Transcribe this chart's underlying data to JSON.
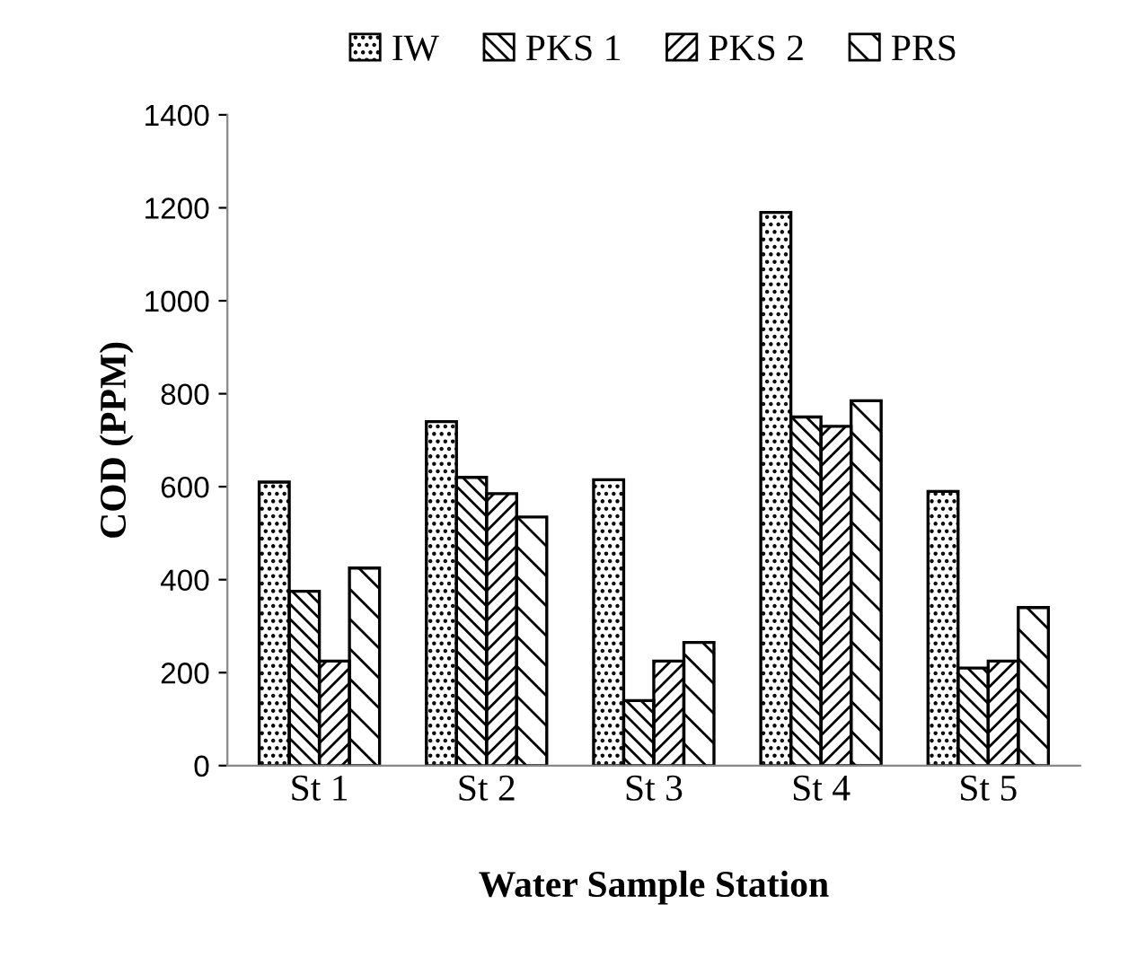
{
  "chart_data": {
    "type": "bar",
    "xlabel": "Water Sample Station",
    "ylabel": "COD (PPM)",
    "categories": [
      "St 1",
      "St 2",
      "St 3",
      "St 4",
      "St 5"
    ],
    "series": [
      {
        "name": "IW",
        "color": "#000000",
        "values": [
          610,
          740,
          615,
          1190,
          590
        ]
      },
      {
        "name": "PKS 1",
        "color": "#000000",
        "values": [
          375,
          620,
          140,
          750,
          210
        ]
      },
      {
        "name": "PKS 2",
        "color": "#000000",
        "values": [
          225,
          585,
          225,
          730,
          225
        ]
      },
      {
        "name": "PRS",
        "color": "#000000",
        "values": [
          425,
          535,
          265,
          785,
          340
        ]
      }
    ],
    "ylim": [
      0,
      1400
    ],
    "yticks": [
      0,
      200,
      400,
      600,
      800,
      1000,
      1200,
      1400
    ],
    "grid": false,
    "legend": "top"
  }
}
